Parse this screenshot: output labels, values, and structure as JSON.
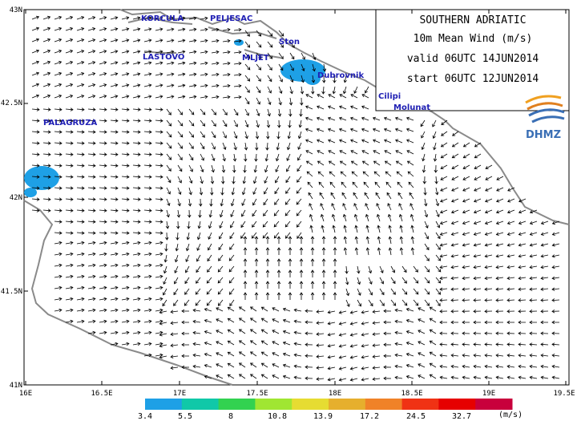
{
  "title_box": {
    "line1": "SOUTHERN ADRIATIC",
    "line2": "10m  Mean  Wind  (m/s)",
    "line3": "valid  06UTC  14JUN2014",
    "line4": "start  06UTC  12JUN2014"
  },
  "logo": {
    "text": "DHMZ"
  },
  "axes": {
    "lon_labels": [
      "16E",
      "16.5E",
      "17E",
      "17.5E",
      "18E",
      "18.5E",
      "19E",
      "19.5E"
    ],
    "lat_labels": [
      "43N",
      "42.5N",
      "42N",
      "41.5N",
      "41N"
    ]
  },
  "places": [
    {
      "name": "KORCULA"
    },
    {
      "name": "PELJESAC"
    },
    {
      "name": "Ston"
    },
    {
      "name": "LASTOVO"
    },
    {
      "name": "MLJET"
    },
    {
      "name": "Dubrovnik"
    },
    {
      "name": "Cilipi"
    },
    {
      "name": "Molunat"
    },
    {
      "name": "PALAGRUZA"
    }
  ],
  "legend": {
    "unit": "(m/s)",
    "thresholds": [
      "3.4",
      "5.5",
      "8",
      "10.8",
      "13.9",
      "17.2",
      "24.5",
      "32.7"
    ],
    "colors": [
      "#1ea0e6",
      "#10c8a8",
      "#32d250",
      "#a0e632",
      "#e6dc32",
      "#e6af2d",
      "#f08228",
      "#f03214",
      "#e60000",
      "#c8003c"
    ]
  },
  "colors": {
    "land": "#ffffff",
    "coast": "#808080",
    "arrow": "#000000",
    "label": "#1f1fb4",
    "shade": "#1ea0e6"
  }
}
